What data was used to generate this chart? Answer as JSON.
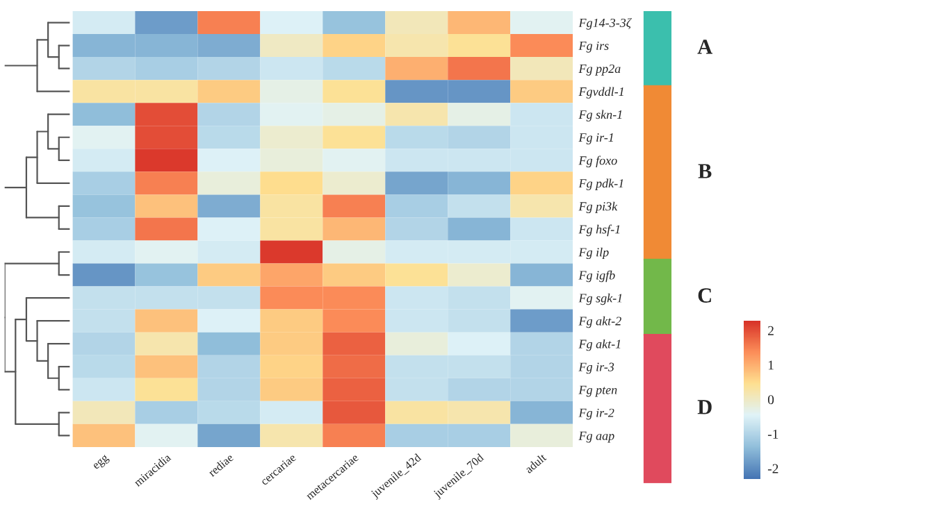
{
  "chart_data": {
    "type": "heatmap",
    "categories": [
      "egg",
      "miracidia",
      "rediae",
      "cercariae",
      "metacercariae",
      "juvenile_42d",
      "juvenile_70d",
      "adult"
    ],
    "y_categories": [
      "Fg14-3-3ζ",
      "Fg irs",
      "Fg pp2a",
      "Fgvddl-1",
      "Fg skn-1",
      "Fg ir-1",
      "Fg foxo",
      "Fg pdk-1",
      "Fg pi3k",
      "Fg hsf-1",
      "Fg ilp",
      "Fg igfb",
      "Fg sgk-1",
      "Fg akt-2",
      "Fg akt-1",
      "Fg ir-3",
      "Fg pten",
      "Fg ir-2",
      "Fg aap"
    ],
    "cells": [
      [
        -0.6,
        -1.8,
        1.5,
        -0.5,
        -1.3,
        0.1,
        0.9,
        -0.4
      ],
      [
        -1.5,
        -1.5,
        -1.6,
        0.0,
        0.6,
        0.2,
        0.4,
        1.4
      ],
      [
        -1.0,
        -1.1,
        -1.0,
        -0.7,
        -0.9,
        1.0,
        1.6,
        0.1
      ],
      [
        0.3,
        0.3,
        0.7,
        -0.3,
        0.4,
        -1.9,
        -1.9,
        0.7
      ],
      [
        -1.4,
        2.0,
        -1.0,
        -0.4,
        -0.3,
        0.2,
        -0.3,
        -0.7
      ],
      [
        -0.4,
        2.0,
        -0.9,
        -0.1,
        0.4,
        -0.9,
        -1.0,
        -0.7
      ],
      [
        -0.6,
        2.2,
        -0.5,
        -0.2,
        -0.4,
        -0.7,
        -0.7,
        -0.7
      ],
      [
        -1.1,
        1.5,
        -0.2,
        0.5,
        -0.1,
        -1.7,
        -1.5,
        0.6
      ],
      [
        -1.3,
        0.8,
        -1.6,
        0.3,
        1.5,
        -1.1,
        -0.8,
        0.2
      ],
      [
        -1.1,
        1.6,
        -0.5,
        0.3,
        0.9,
        -1.0,
        -1.5,
        -0.7
      ],
      [
        -0.6,
        -0.4,
        -0.6,
        2.2,
        -0.3,
        -0.6,
        -0.6,
        -0.6
      ],
      [
        -1.9,
        -1.3,
        0.7,
        1.1,
        0.7,
        0.4,
        -0.1,
        -1.5
      ],
      [
        -0.8,
        -0.8,
        -0.8,
        1.4,
        1.4,
        -0.7,
        -0.8,
        -0.4
      ],
      [
        -0.8,
        0.8,
        -0.5,
        0.7,
        1.4,
        -0.7,
        -0.8,
        -1.8
      ],
      [
        -1.0,
        0.2,
        -1.4,
        0.7,
        1.8,
        -0.2,
        -0.5,
        -1.0
      ],
      [
        -0.9,
        0.8,
        -1.0,
        0.6,
        1.7,
        -0.8,
        -0.8,
        -1.0
      ],
      [
        -0.7,
        0.4,
        -1.0,
        0.7,
        1.8,
        -0.8,
        -1.0,
        -1.0
      ],
      [
        0.1,
        -1.1,
        -0.9,
        -0.6,
        1.9,
        0.3,
        0.2,
        -1.5
      ],
      [
        0.8,
        -0.4,
        -1.7,
        0.2,
        1.5,
        -1.1,
        -1.1,
        -0.2
      ]
    ],
    "clim": [
      -2.3,
      2.3
    ],
    "cticks": [
      2,
      1,
      0,
      -1,
      -2
    ],
    "annotations": [
      "A",
      "B",
      "C",
      "D"
    ]
  }
}
